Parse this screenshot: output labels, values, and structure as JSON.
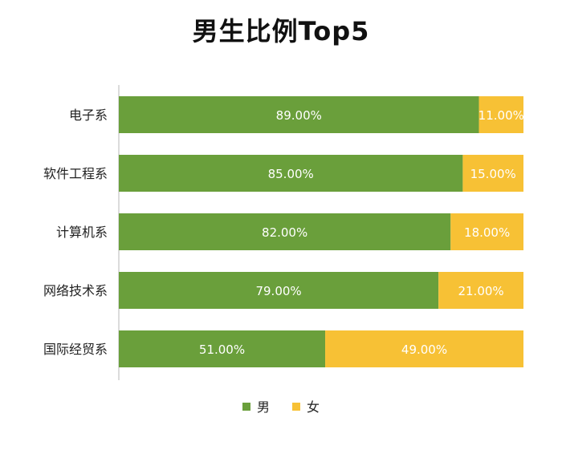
{
  "chart_data": {
    "type": "bar",
    "orientation": "horizontal",
    "stacked": true,
    "title": "男生比例Top5",
    "categories": [
      "电子系",
      "软件工程系",
      "计算机系",
      "网络技术系",
      "国际经贸系"
    ],
    "series": [
      {
        "name": "男",
        "color": "#6a9f3b",
        "values": [
          89,
          85,
          82,
          79,
          51
        ],
        "labels": [
          "89.00%",
          "85.00%",
          "82.00%",
          "79.00%",
          "51.00%"
        ]
      },
      {
        "name": "女",
        "color": "#f7c135",
        "values": [
          11,
          15,
          18,
          21,
          49
        ],
        "labels": [
          "11.00%",
          "15.00%",
          "18.00%",
          "21.00%",
          "49.00%"
        ]
      }
    ],
    "xlim": [
      0,
      100
    ],
    "grid": false,
    "legend": "bottom"
  }
}
